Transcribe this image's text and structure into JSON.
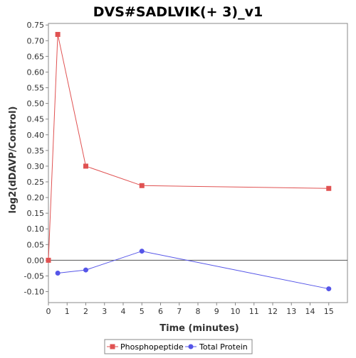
{
  "chart_data": {
    "type": "line",
    "title": "DVS#SADLVIK(+ 3)_v1",
    "xlabel": "Time (minutes)",
    "ylabel": "log2(dDAVP/Control)",
    "xlim": [
      0,
      16
    ],
    "ylim": [
      -0.135,
      0.755
    ],
    "x_ticks": [
      "0",
      "1",
      "2",
      "3",
      "4",
      "5",
      "6",
      "7",
      "8",
      "9",
      "10",
      "11",
      "12",
      "13",
      "14",
      "15"
    ],
    "y_ticks": [
      "-0.10",
      "-0.05",
      "0.00",
      "0.05",
      "0.10",
      "0.15",
      "0.20",
      "0.25",
      "0.30",
      "0.35",
      "0.40",
      "0.45",
      "0.50",
      "0.55",
      "0.60",
      "0.65",
      "0.70",
      "0.75"
    ],
    "zero_line": true,
    "grid": false,
    "legend_position": "bottom-center",
    "series": [
      {
        "name": "Phosphopeptide",
        "color": "#e05252",
        "marker": "square",
        "x": [
          0,
          0.5,
          2,
          5,
          15
        ],
        "y": [
          0.0,
          0.72,
          0.3,
          0.238,
          0.229
        ]
      },
      {
        "name": "Total Protein",
        "color": "#5555e8",
        "marker": "circle",
        "x": [
          0.5,
          2,
          5,
          15
        ],
        "y": [
          -0.041,
          -0.031,
          0.029,
          -0.091
        ]
      }
    ]
  }
}
